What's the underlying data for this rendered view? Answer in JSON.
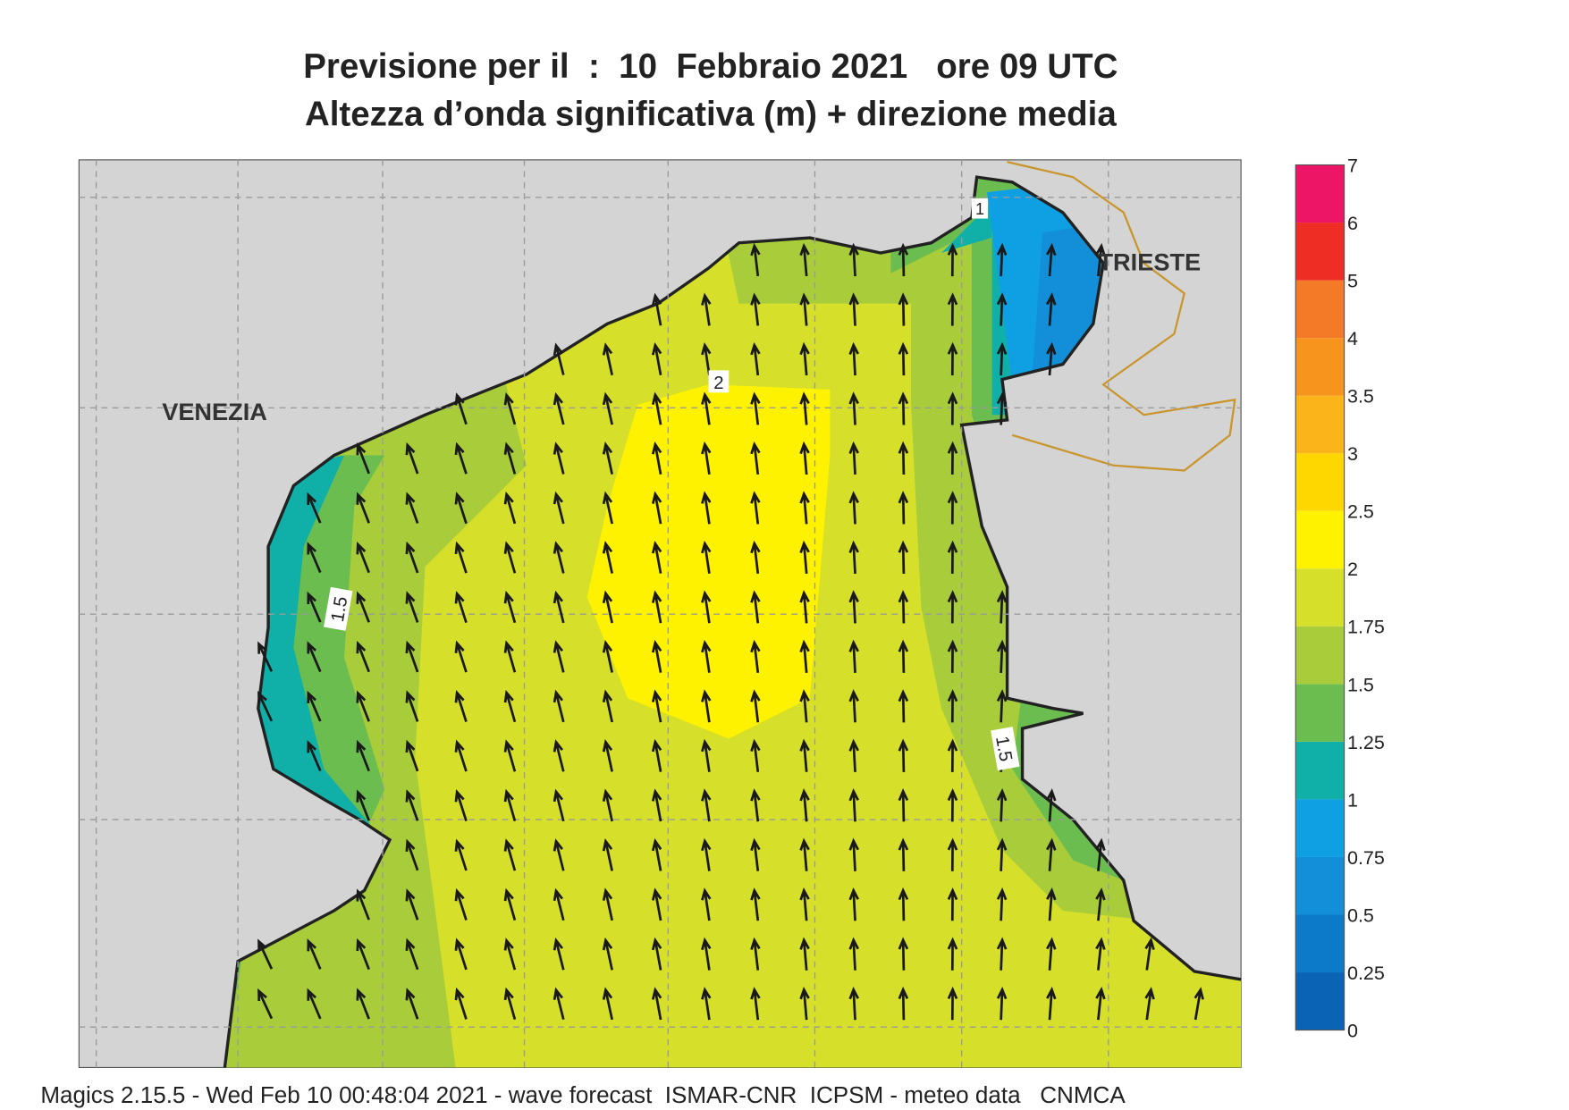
{
  "title": [
    "Previsione per il  :  10  Febbraio 2021   ore 09 UTC",
    "Altezza d’onda significativa (m) + direzione media"
  ],
  "places": [
    "VENEZIA",
    "TRIESTE"
  ],
  "contour_labels": [
    2,
    1.5,
    1.5,
    1
  ],
  "legend": {
    "levels": [
      0,
      0.25,
      0.5,
      0.75,
      1,
      1.25,
      1.5,
      1.75,
      2,
      2.5,
      3,
      3.5,
      4,
      5,
      6,
      7
    ],
    "colors": [
      "#0b63b5",
      "#0c7ac8",
      "#138ed8",
      "#0fa0e3",
      "#10b0a8",
      "#6cbd50",
      "#a8cc3a",
      "#d6e02a",
      "#fff200",
      "#fed700",
      "#fbb51a",
      "#f7941d",
      "#f47a28",
      "#ee2d24",
      "#ec1566"
    ]
  },
  "footer": "Magics 2.15.5 - Wed Feb 10 00:48:04 2021 - wave forecast  ISMAR-CNR  ICPSM - meteo data   CNMCA"
}
